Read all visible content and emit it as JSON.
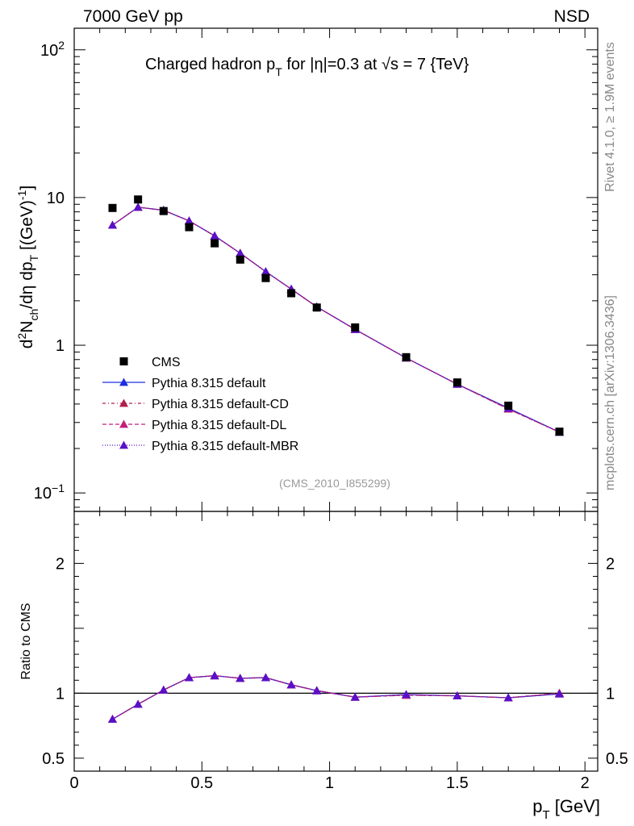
{
  "header": {
    "left": "7000 GeV pp",
    "right": "NSD"
  },
  "side_labels": {
    "rivet": "Rivet 4.1.0, ≥ 1.9M events",
    "mcplots": "mcplots.cern.ch [arXiv:1306.3436]"
  },
  "analysis_tag": "(CMS_2010_I855299)",
  "chart_data": {
    "type": "scatter",
    "title_parts": {
      "pre": "Charged hadron p",
      "sub": "T",
      "mid": " for |η|=0.3 at ",
      "sqrt": "√s",
      "post": " = 7 {TeV}"
    },
    "ylabel_parts": {
      "a": "d",
      "a_sup": "2",
      "b": "N",
      "b_sub": "ch",
      "c": "/dη  dp",
      "c_sub": "T",
      "d": "  [(GeV)",
      "d_sup": "-1",
      "e": "]"
    },
    "xlabel_parts": {
      "a": "p",
      "a_sub": "T",
      "b": " [GeV]"
    },
    "ratio_ylabel": "Ratio to CMS",
    "xlim": [
      0,
      2.05
    ],
    "ylim_main": [
      0.075,
      140
    ],
    "ylim_ratio": [
      0.4,
      2.4
    ],
    "x_ticks": [
      "0",
      "0.5",
      "1",
      "1.5",
      "2"
    ],
    "y_main_ticks": [
      {
        "value": 100,
        "base": "10",
        "exp": "2"
      },
      {
        "value": 10,
        "base": "10",
        "exp": ""
      },
      {
        "value": 1,
        "base": "1",
        "exp": ""
      },
      {
        "value": 0.1,
        "base": "10",
        "exp": "−1"
      }
    ],
    "y_ratio_ticks": [
      "0.5",
      "1",
      "2"
    ],
    "x": [
      0.15,
      0.25,
      0.35,
      0.45,
      0.55,
      0.65,
      0.75,
      0.85,
      0.95,
      1.1,
      1.3,
      1.5,
      1.7,
      1.9
    ],
    "data": {
      "name": "CMS",
      "values": [
        8.5,
        9.7,
        8.1,
        6.3,
        4.9,
        3.8,
        2.85,
        2.25,
        1.8,
        1.32,
        0.83,
        0.56,
        0.39,
        0.26
      ]
    },
    "series": [
      {
        "name": "Pythia 8.315 default",
        "color": "#1a2fe0",
        "dash": "",
        "values": [
          6.5,
          8.6,
          8.2,
          6.95,
          5.5,
          4.2,
          3.15,
          2.4,
          1.82,
          1.28,
          0.82,
          0.545,
          0.375,
          0.258
        ],
        "ratio": [
          0.8,
          0.915,
          1.025,
          1.12,
          1.135,
          1.115,
          1.12,
          1.065,
          1.02,
          0.97,
          0.99,
          0.98,
          0.965,
          0.995
        ]
      },
      {
        "name": "Pythia 8.315 default-CD",
        "color": "#b0204a",
        "dash": "4,3,1,3",
        "values": [
          6.5,
          8.6,
          8.2,
          6.95,
          5.5,
          4.2,
          3.15,
          2.4,
          1.82,
          1.28,
          0.82,
          0.545,
          0.37,
          0.258
        ],
        "ratio": [
          0.8,
          0.915,
          1.025,
          1.12,
          1.135,
          1.115,
          1.12,
          1.065,
          1.02,
          0.97,
          0.985,
          0.98,
          0.965,
          1.0
        ]
      },
      {
        "name": "Pythia 8.315 default-DL",
        "color": "#c0207a",
        "dash": "5,3",
        "values": [
          6.5,
          8.6,
          8.2,
          6.95,
          5.5,
          4.2,
          3.15,
          2.4,
          1.82,
          1.28,
          0.82,
          0.545,
          0.37,
          0.258
        ],
        "ratio": [
          0.8,
          0.915,
          1.025,
          1.12,
          1.135,
          1.115,
          1.12,
          1.065,
          1.02,
          0.97,
          0.985,
          0.98,
          0.965,
          1.0
        ]
      },
      {
        "name": "Pythia 8.315 default-MBR",
        "color": "#5a10c8",
        "dash": "1,2",
        "values": [
          6.5,
          8.6,
          8.2,
          6.95,
          5.5,
          4.2,
          3.15,
          2.4,
          1.82,
          1.28,
          0.82,
          0.545,
          0.375,
          0.258
        ],
        "ratio": [
          0.8,
          0.915,
          1.025,
          1.12,
          1.135,
          1.115,
          1.12,
          1.065,
          1.02,
          0.97,
          0.99,
          0.98,
          0.965,
          0.995
        ]
      }
    ]
  }
}
